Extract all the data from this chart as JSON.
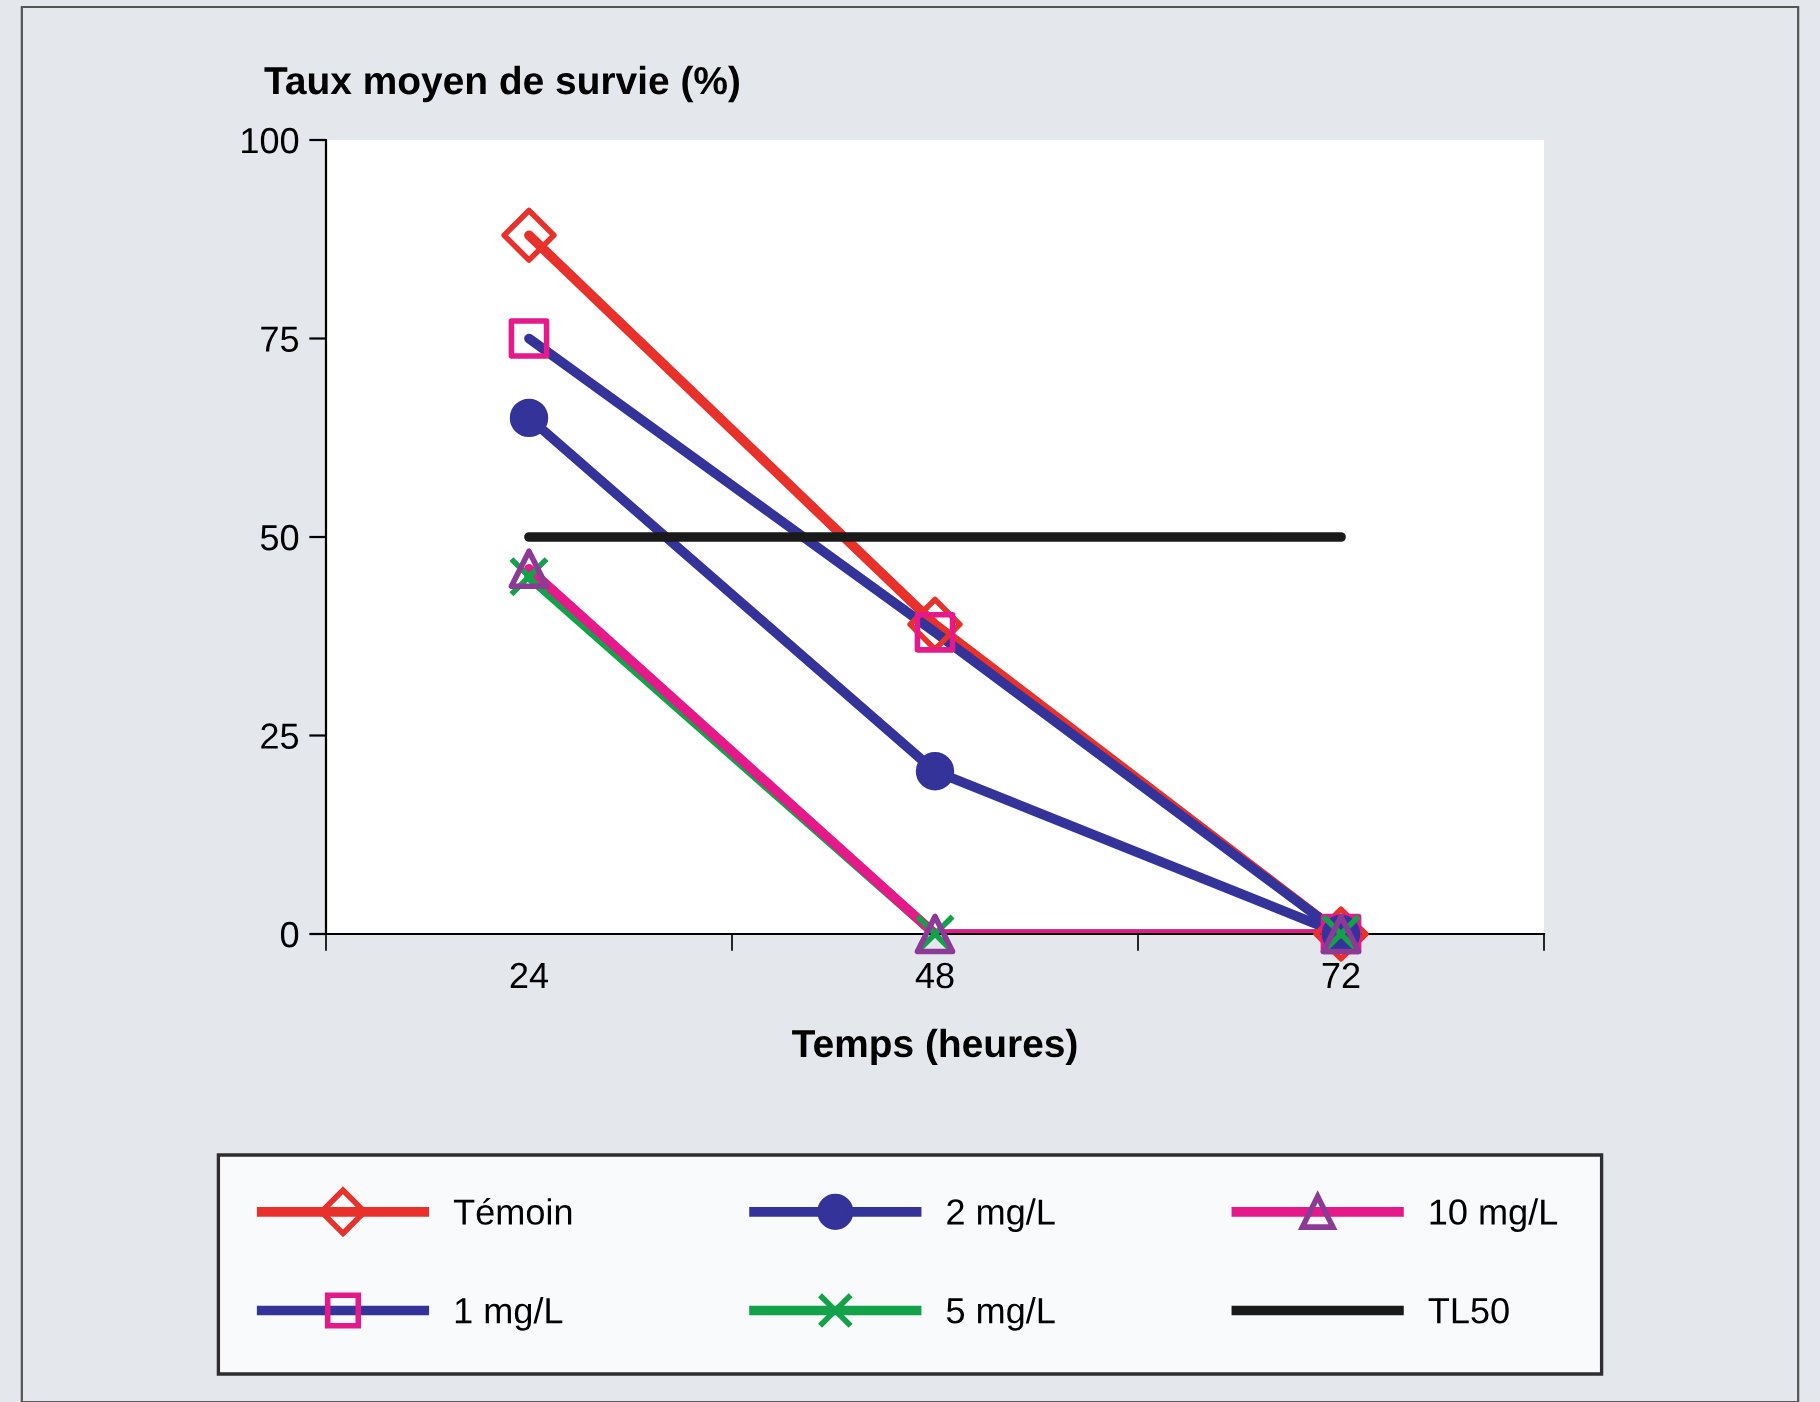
{
  "chart_data": {
    "type": "line",
    "xlabel": "Temps (heures)",
    "ylabel": "Taux moyen de survie (%)",
    "categories": [
      "24",
      "48",
      "72"
    ],
    "ylim": [
      0,
      100
    ],
    "yticks": [
      0,
      25,
      50,
      75,
      100
    ],
    "grid": false,
    "legend": "bottom",
    "line_style": "solid",
    "series": [
      {
        "name": "Témoin",
        "color": "#e8312b",
        "marker": "diamond",
        "colors": [
          "#e8312b",
          "#e8312b",
          "#e8312b"
        ],
        "values": [
          88,
          39,
          0
        ]
      },
      {
        "name": "1 mg/L",
        "color": "#333399",
        "marker": "square",
        "colors": [
          "#e5198a",
          "#e5198a",
          "#e5198a"
        ],
        "values": [
          75,
          38,
          0
        ]
      },
      {
        "name": "2 mg/L",
        "color": "#333399",
        "marker": "circle",
        "colors": [
          "#333399",
          "#333399",
          "#333399"
        ],
        "values": [
          65,
          20.5,
          0
        ]
      },
      {
        "name": "5 mg/L",
        "color": "#13a24a",
        "marker": "cross",
        "colors": [
          "#13a24a",
          "#13a24a",
          "#13a24a"
        ],
        "values": [
          45,
          0,
          0
        ]
      },
      {
        "name": "10 mg/L",
        "color": "#e5198a",
        "marker": "triangle",
        "colors": [
          "#8b3a96",
          "#8b3a96",
          "#8b3a96"
        ],
        "values": [
          46,
          0,
          0
        ]
      },
      {
        "name": "TL50",
        "color": "#1a1a1a",
        "marker": "none",
        "values": [
          50,
          50,
          50
        ]
      }
    ]
  }
}
